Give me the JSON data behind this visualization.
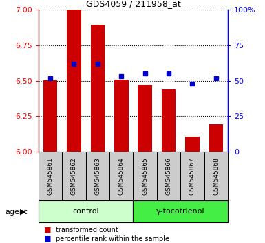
{
  "title": "GDS4059 / 211958_at",
  "samples": [
    "GSM545861",
    "GSM545862",
    "GSM545863",
    "GSM545864",
    "GSM545865",
    "GSM545866",
    "GSM545867",
    "GSM545868"
  ],
  "red_values": [
    6.505,
    7.0,
    6.895,
    6.507,
    6.472,
    6.442,
    6.108,
    6.192
  ],
  "blue_values": [
    52,
    62,
    62,
    53,
    55,
    55,
    48,
    52
  ],
  "ymin": 6.0,
  "ymax": 7.0,
  "y2min": 0,
  "y2max": 100,
  "bar_color": "#cc0000",
  "dot_color": "#0000cc",
  "control_label": "control",
  "treatment_label": "γ-tocotrienol",
  "control_bg": "#ccffcc",
  "treatment_bg": "#44ee44",
  "sample_bg": "#cccccc",
  "agent_label": "agent",
  "legend_red": "transformed count",
  "legend_blue": "percentile rank within the sample",
  "yticks": [
    6.0,
    6.25,
    6.5,
    6.75,
    7.0
  ],
  "y2ticks": [
    0,
    25,
    50,
    75,
    100
  ]
}
